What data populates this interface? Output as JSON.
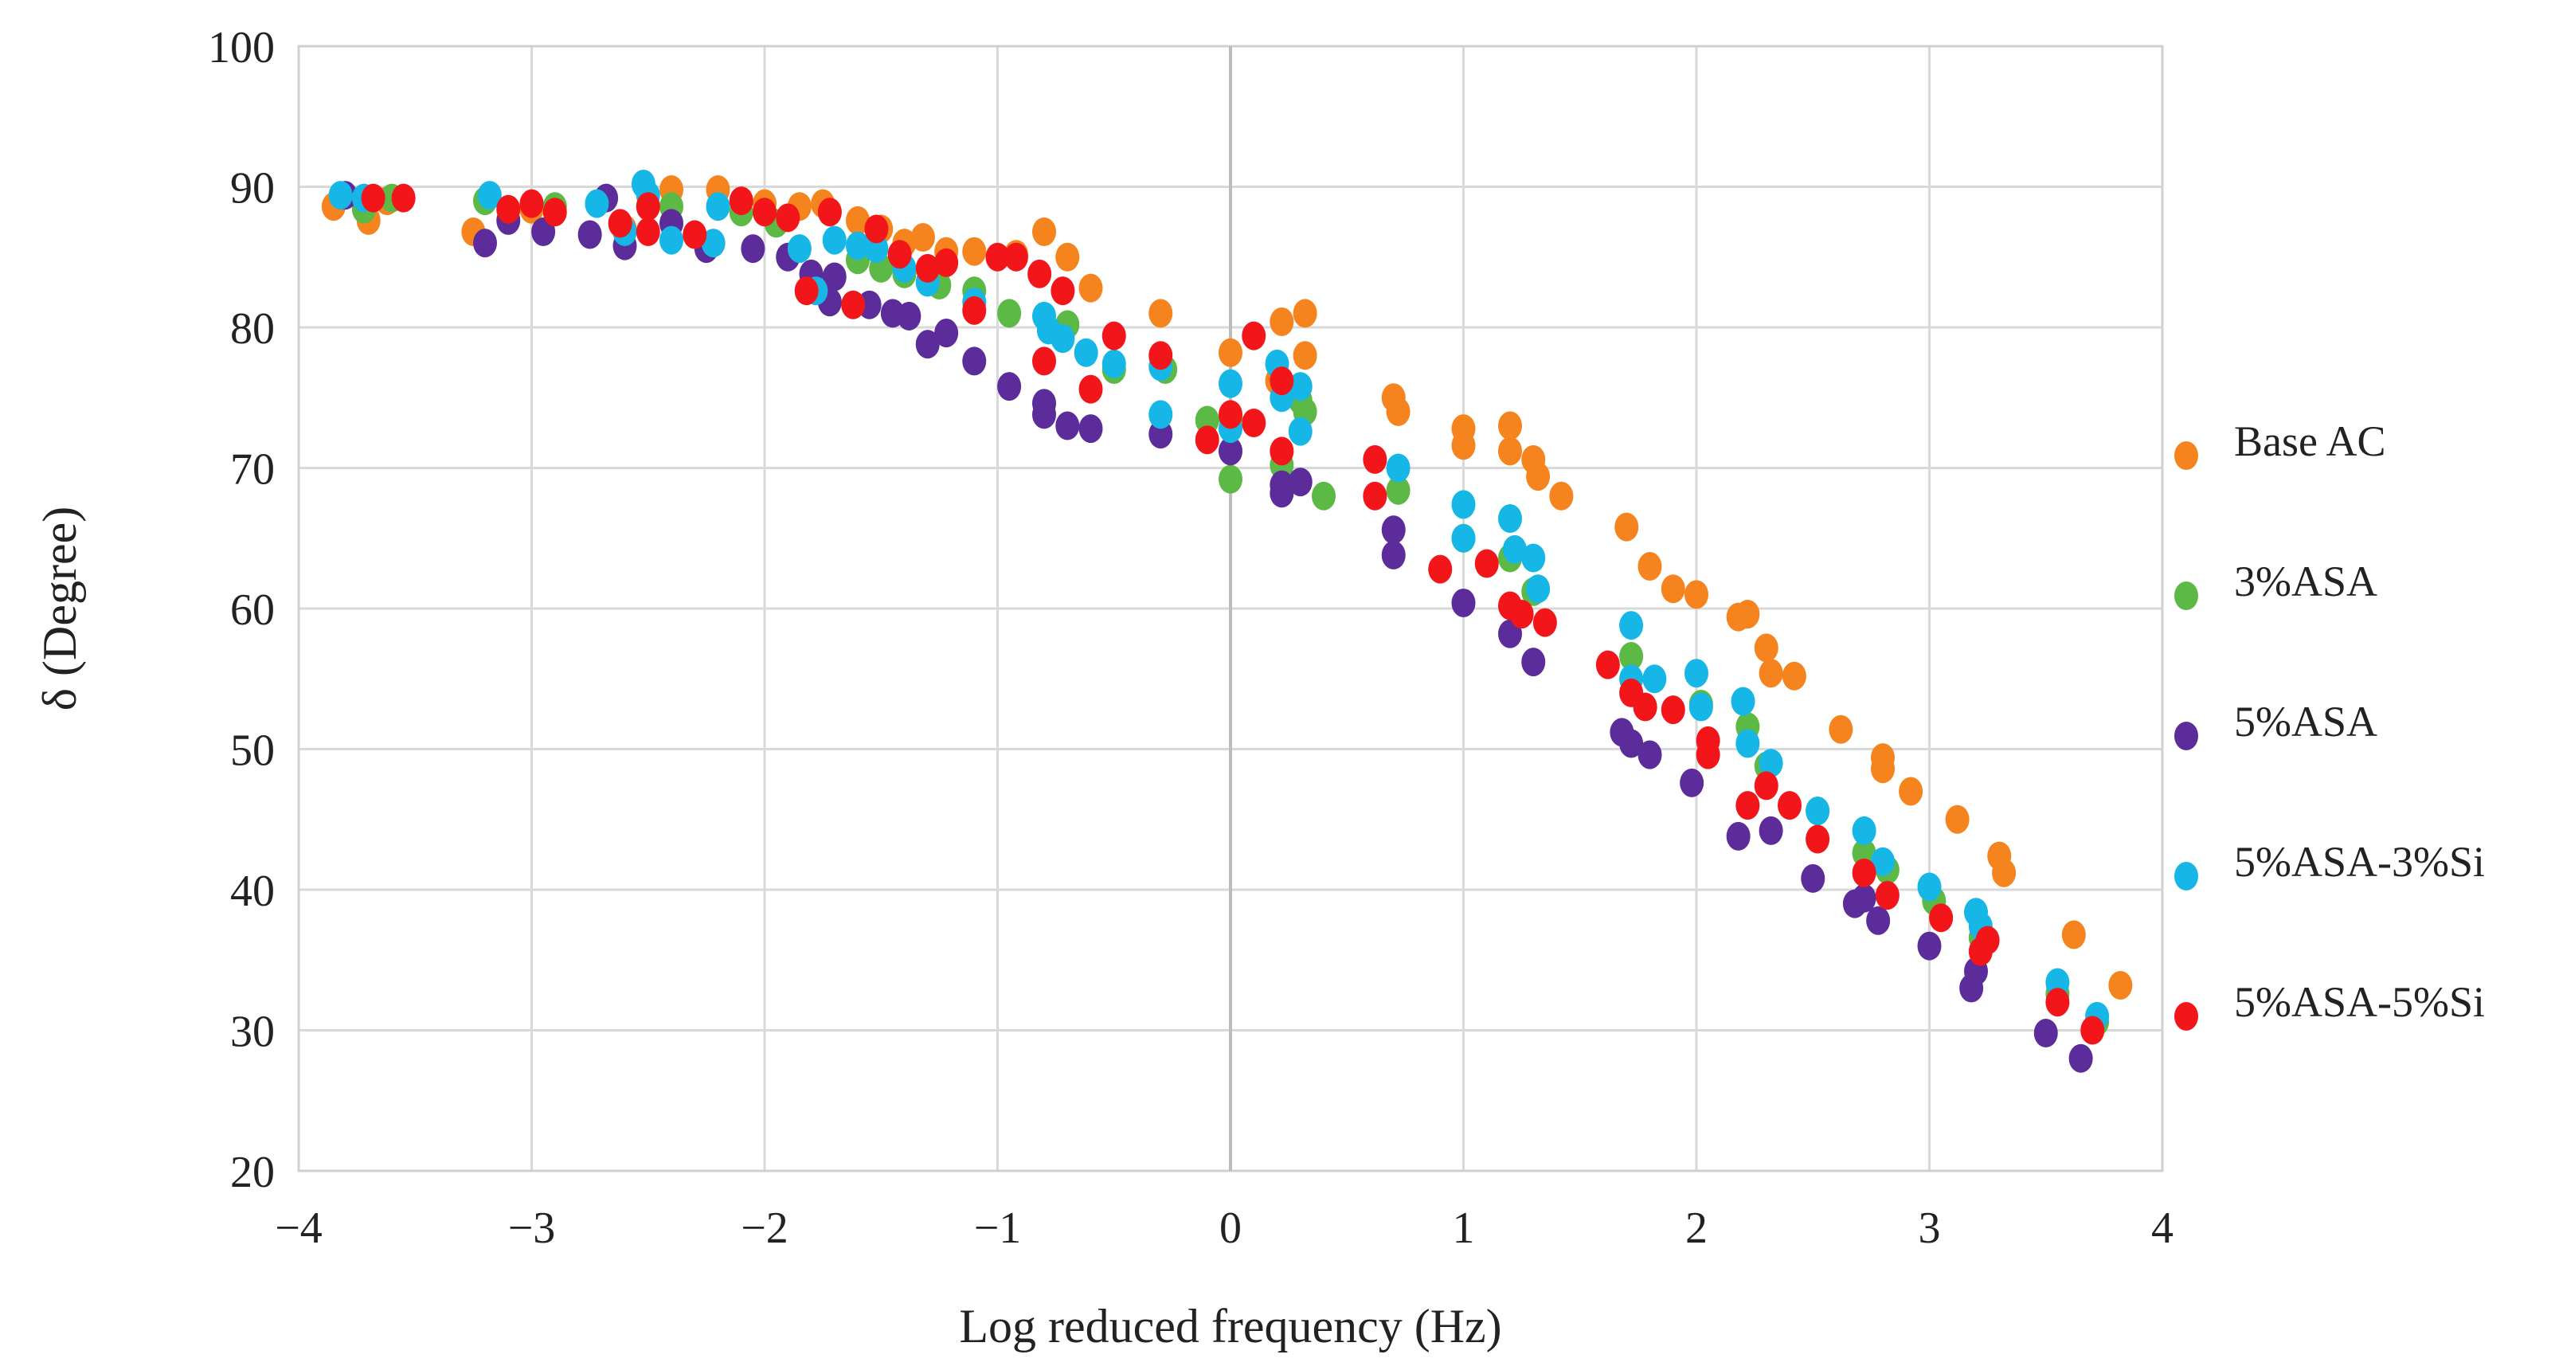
{
  "chart_data": {
    "type": "scatter",
    "title": "",
    "xlabel": "Log reduced frequency (Hz)",
    "ylabel": "δ (Degree)",
    "xlim": [
      -4,
      4
    ],
    "ylim": [
      20,
      100
    ],
    "xticks": [
      -4,
      -3,
      -2,
      -1,
      0,
      1,
      2,
      3,
      4
    ],
    "xtick_labels": [
      "−4",
      "−3",
      "−2",
      "−1",
      "0",
      "1",
      "2",
      "3",
      "4"
    ],
    "yticks": [
      20,
      30,
      40,
      50,
      60,
      70,
      80,
      90,
      100
    ],
    "ytick_labels": [
      "20",
      "30",
      "40",
      "50",
      "60",
      "70",
      "80",
      "90",
      "100"
    ],
    "grid": true,
    "legend_position": "right",
    "series": [
      {
        "name": "Base AC",
        "color": "#F5841F",
        "points": [
          [
            -3.85,
            88.6
          ],
          [
            -3.7,
            87.6
          ],
          [
            -3.62,
            89.0
          ],
          [
            -3.25,
            86.8
          ],
          [
            -3.0,
            88.4
          ],
          [
            -2.6,
            87.0
          ],
          [
            -2.4,
            89.8
          ],
          [
            -2.2,
            89.8
          ],
          [
            -2.0,
            88.8
          ],
          [
            -1.85,
            88.6
          ],
          [
            -1.75,
            88.8
          ],
          [
            -1.6,
            87.6
          ],
          [
            -1.5,
            87.0
          ],
          [
            -1.4,
            86.0
          ],
          [
            -1.32,
            86.4
          ],
          [
            -1.22,
            85.4
          ],
          [
            -1.1,
            85.4
          ],
          [
            -0.92,
            85.2
          ],
          [
            -0.8,
            86.8
          ],
          [
            -0.7,
            85.0
          ],
          [
            -0.6,
            82.8
          ],
          [
            -0.3,
            81.0
          ],
          [
            0.0,
            78.2
          ],
          [
            0.22,
            80.4
          ],
          [
            0.32,
            81.0
          ],
          [
            0.32,
            78.0
          ],
          [
            0.2,
            76.2
          ],
          [
            0.7,
            75.0
          ],
          [
            0.72,
            74.0
          ],
          [
            1.0,
            72.8
          ],
          [
            1.0,
            71.6
          ],
          [
            1.2,
            73.0
          ],
          [
            1.2,
            71.2
          ],
          [
            1.3,
            70.6
          ],
          [
            1.32,
            69.4
          ],
          [
            1.42,
            68.0
          ],
          [
            1.7,
            65.8
          ],
          [
            1.8,
            63.0
          ],
          [
            1.9,
            61.4
          ],
          [
            2.0,
            61.0
          ],
          [
            2.18,
            59.4
          ],
          [
            2.22,
            59.6
          ],
          [
            2.3,
            57.2
          ],
          [
            2.32,
            55.4
          ],
          [
            2.42,
            55.2
          ],
          [
            2.62,
            51.4
          ],
          [
            2.8,
            49.4
          ],
          [
            2.8,
            48.6
          ],
          [
            2.92,
            47.0
          ],
          [
            3.12,
            45.0
          ],
          [
            3.3,
            42.4
          ],
          [
            3.32,
            41.2
          ],
          [
            3.62,
            36.8
          ],
          [
            3.82,
            33.2
          ]
        ]
      },
      {
        "name": "3%ASA",
        "color": "#5CB946",
        "points": [
          [
            -3.72,
            88.4
          ],
          [
            -3.6,
            89.2
          ],
          [
            -3.2,
            89.0
          ],
          [
            -2.9,
            88.6
          ],
          [
            -2.4,
            88.6
          ],
          [
            -2.1,
            88.2
          ],
          [
            -1.95,
            87.4
          ],
          [
            -1.6,
            84.8
          ],
          [
            -1.5,
            84.2
          ],
          [
            -1.4,
            83.8
          ],
          [
            -1.25,
            83.0
          ],
          [
            -1.1,
            82.6
          ],
          [
            -0.95,
            81.0
          ],
          [
            -0.7,
            80.2
          ],
          [
            -0.5,
            77.0
          ],
          [
            -0.28,
            77.0
          ],
          [
            -0.1,
            73.4
          ],
          [
            0.0,
            73.6
          ],
          [
            0.0,
            69.2
          ],
          [
            0.22,
            70.2
          ],
          [
            0.3,
            74.8
          ],
          [
            0.32,
            74.0
          ],
          [
            0.4,
            68.0
          ],
          [
            0.72,
            68.4
          ],
          [
            1.0,
            65.0
          ],
          [
            1.2,
            63.6
          ],
          [
            1.3,
            61.2
          ],
          [
            1.72,
            56.6
          ],
          [
            2.02,
            53.2
          ],
          [
            2.22,
            51.6
          ],
          [
            2.3,
            48.8
          ],
          [
            2.52,
            45.6
          ],
          [
            2.72,
            42.6
          ],
          [
            2.82,
            41.4
          ],
          [
            3.02,
            39.2
          ],
          [
            3.22,
            36.6
          ],
          [
            3.55,
            32.6
          ],
          [
            3.72,
            30.6
          ]
        ]
      },
      {
        "name": "5%ASA",
        "color": "#5B2C9A",
        "points": [
          [
            -3.8,
            89.4
          ],
          [
            -3.2,
            86.0
          ],
          [
            -3.1,
            87.6
          ],
          [
            -2.95,
            86.8
          ],
          [
            -2.75,
            86.6
          ],
          [
            -2.68,
            89.2
          ],
          [
            -2.6,
            85.8
          ],
          [
            -2.4,
            87.4
          ],
          [
            -2.25,
            85.6
          ],
          [
            -2.05,
            85.6
          ],
          [
            -1.9,
            85.0
          ],
          [
            -1.8,
            83.8
          ],
          [
            -1.7,
            83.6
          ],
          [
            -1.72,
            81.8
          ],
          [
            -1.55,
            81.6
          ],
          [
            -1.45,
            81.0
          ],
          [
            -1.38,
            80.8
          ],
          [
            -1.3,
            78.8
          ],
          [
            -1.22,
            79.6
          ],
          [
            -1.1,
            77.6
          ],
          [
            -0.95,
            75.8
          ],
          [
            -0.8,
            74.6
          ],
          [
            -0.8,
            73.8
          ],
          [
            -0.7,
            73.0
          ],
          [
            -0.6,
            72.8
          ],
          [
            -0.3,
            72.4
          ],
          [
            0.0,
            71.2
          ],
          [
            0.22,
            68.8
          ],
          [
            0.22,
            68.2
          ],
          [
            0.3,
            69.0
          ],
          [
            0.7,
            65.6
          ],
          [
            0.7,
            63.8
          ],
          [
            1.0,
            60.4
          ],
          [
            1.2,
            58.2
          ],
          [
            1.3,
            56.2
          ],
          [
            1.68,
            51.2
          ],
          [
            1.72,
            50.4
          ],
          [
            1.8,
            49.6
          ],
          [
            1.98,
            47.6
          ],
          [
            2.18,
            43.8
          ],
          [
            2.32,
            44.2
          ],
          [
            2.5,
            40.8
          ],
          [
            2.68,
            39.0
          ],
          [
            2.72,
            39.4
          ],
          [
            2.78,
            37.8
          ],
          [
            3.0,
            36.0
          ],
          [
            3.18,
            33.0
          ],
          [
            3.2,
            34.2
          ],
          [
            3.5,
            29.8
          ],
          [
            3.65,
            28.0
          ]
        ]
      },
      {
        "name": "5%ASA-3%Si",
        "color": "#16B7E6",
        "points": [
          [
            -3.82,
            89.4
          ],
          [
            -3.72,
            89.2
          ],
          [
            -3.18,
            89.4
          ],
          [
            -2.72,
            88.8
          ],
          [
            -2.6,
            86.8
          ],
          [
            -2.52,
            90.2
          ],
          [
            -2.5,
            89.4
          ],
          [
            -2.4,
            86.2
          ],
          [
            -2.2,
            88.6
          ],
          [
            -2.22,
            86.0
          ],
          [
            -1.85,
            85.6
          ],
          [
            -1.78,
            82.6
          ],
          [
            -1.7,
            86.2
          ],
          [
            -1.6,
            85.8
          ],
          [
            -1.52,
            85.6
          ],
          [
            -1.4,
            84.2
          ],
          [
            -1.3,
            83.2
          ],
          [
            -1.1,
            81.8
          ],
          [
            -0.8,
            80.8
          ],
          [
            -0.78,
            79.8
          ],
          [
            -0.72,
            79.2
          ],
          [
            -0.62,
            78.2
          ],
          [
            -0.5,
            77.4
          ],
          [
            -0.3,
            77.2
          ],
          [
            -0.3,
            73.8
          ],
          [
            0.0,
            76.0
          ],
          [
            0.0,
            72.8
          ],
          [
            0.2,
            77.4
          ],
          [
            0.22,
            75.0
          ],
          [
            0.3,
            75.8
          ],
          [
            0.3,
            72.6
          ],
          [
            0.72,
            70.0
          ],
          [
            1.0,
            67.4
          ],
          [
            1.0,
            65.0
          ],
          [
            1.2,
            66.4
          ],
          [
            1.22,
            64.2
          ],
          [
            1.3,
            63.6
          ],
          [
            1.32,
            61.4
          ],
          [
            1.72,
            58.8
          ],
          [
            1.72,
            55.0
          ],
          [
            1.82,
            55.0
          ],
          [
            2.0,
            55.4
          ],
          [
            2.02,
            53.0
          ],
          [
            2.2,
            53.4
          ],
          [
            2.22,
            50.4
          ],
          [
            2.32,
            49.0
          ],
          [
            2.52,
            45.6
          ],
          [
            2.72,
            44.2
          ],
          [
            2.8,
            42.0
          ],
          [
            3.0,
            40.2
          ],
          [
            3.2,
            38.4
          ],
          [
            3.22,
            37.4
          ],
          [
            3.55,
            33.4
          ],
          [
            3.72,
            31.0
          ]
        ]
      },
      {
        "name": "5%ASA-5%Si",
        "color": "#F2161A",
        "points": [
          [
            -3.68,
            89.2
          ],
          [
            -3.55,
            89.2
          ],
          [
            -3.1,
            88.4
          ],
          [
            -3.0,
            88.8
          ],
          [
            -2.9,
            88.2
          ],
          [
            -2.62,
            87.4
          ],
          [
            -2.5,
            88.6
          ],
          [
            -2.5,
            86.8
          ],
          [
            -2.3,
            86.6
          ],
          [
            -2.1,
            89.0
          ],
          [
            -2.0,
            88.2
          ],
          [
            -1.9,
            87.8
          ],
          [
            -1.82,
            82.6
          ],
          [
            -1.72,
            88.2
          ],
          [
            -1.62,
            81.6
          ],
          [
            -1.52,
            87.0
          ],
          [
            -1.42,
            85.2
          ],
          [
            -1.3,
            84.2
          ],
          [
            -1.22,
            84.6
          ],
          [
            -1.1,
            81.2
          ],
          [
            -1.0,
            85.0
          ],
          [
            -0.92,
            85.0
          ],
          [
            -0.82,
            83.8
          ],
          [
            -0.8,
            77.6
          ],
          [
            -0.72,
            82.6
          ],
          [
            -0.6,
            75.6
          ],
          [
            -0.5,
            79.4
          ],
          [
            -0.3,
            78.0
          ],
          [
            -0.1,
            72.0
          ],
          [
            0.0,
            73.8
          ],
          [
            0.1,
            79.4
          ],
          [
            0.1,
            73.2
          ],
          [
            0.22,
            76.2
          ],
          [
            0.22,
            71.2
          ],
          [
            0.62,
            70.6
          ],
          [
            0.62,
            68.0
          ],
          [
            0.9,
            62.8
          ],
          [
            1.1,
            63.2
          ],
          [
            1.2,
            60.2
          ],
          [
            1.25,
            59.6
          ],
          [
            1.35,
            59.0
          ],
          [
            1.62,
            56.0
          ],
          [
            1.72,
            54.0
          ],
          [
            1.78,
            53.0
          ],
          [
            1.9,
            52.8
          ],
          [
            2.05,
            50.6
          ],
          [
            2.05,
            49.6
          ],
          [
            2.22,
            46.0
          ],
          [
            2.3,
            47.4
          ],
          [
            2.4,
            46.0
          ],
          [
            2.52,
            43.6
          ],
          [
            2.72,
            41.2
          ],
          [
            2.82,
            39.6
          ],
          [
            3.05,
            38.0
          ],
          [
            3.22,
            35.6
          ],
          [
            3.25,
            36.4
          ],
          [
            3.55,
            32.0
          ],
          [
            3.7,
            30.0
          ]
        ]
      }
    ]
  }
}
